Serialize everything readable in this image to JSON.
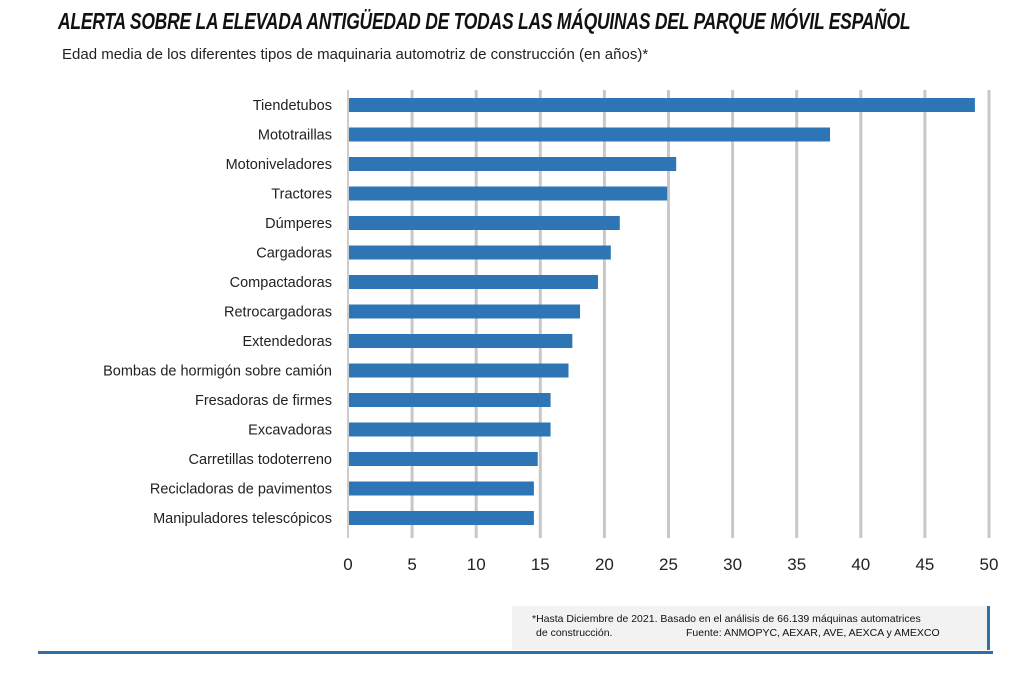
{
  "chart_data": {
    "type": "bar",
    "orientation": "horizontal",
    "title": "ALERTA SOBRE LA ELEVADA ANTIGÜEDAD DE TODAS LAS MÁQUINAS DEL PARQUE MÓVIL ESPAÑOL",
    "subtitle": "Edad media de los diferentes tipos de maquinaria automotriz de construcción (en años)*",
    "categories": [
      "Tiendetubos",
      "Mototraillas",
      "Motoniveladores",
      "Tractores",
      "Dúmperes",
      "Cargadoras",
      "Compactadoras",
      "Retrocargadoras",
      "Extendedoras",
      "Bombas de hormigón sobre camión",
      "Fresadoras de firmes",
      "Excavadoras",
      "Carretillas todoterreno",
      "Recicladoras de pavimentos",
      "Manipuladores telescópicos"
    ],
    "values": [
      48.9,
      37.6,
      25.6,
      24.9,
      21.2,
      20.5,
      19.5,
      18.1,
      17.5,
      17.2,
      15.8,
      15.8,
      14.8,
      14.5,
      14.5
    ],
    "xlim": [
      0,
      50
    ],
    "xticks": [
      "0",
      "5",
      "10",
      "15",
      "20",
      "25",
      "30",
      "35",
      "40",
      "45",
      "50"
    ],
    "grid": true,
    "bar_color": "#2e75b6",
    "grid_color": "#c8c8c8"
  },
  "footnote": {
    "line1": "*Hasta Diciembre de 2021. Basado en el análisis de 66.139 máquinas automatrices",
    "line2": "de construcción.",
    "source": "Fuente: ANMOPYC, AEXAR, AVE, AEXCA y AMEXCO"
  }
}
